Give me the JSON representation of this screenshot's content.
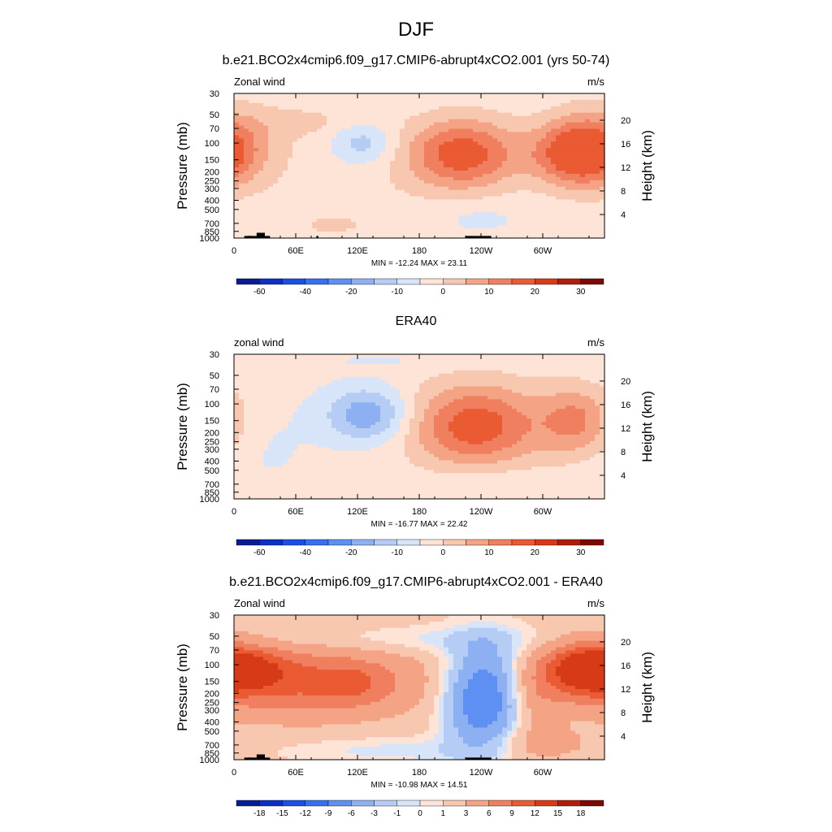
{
  "figure_title": "DJF",
  "chart_data": [
    {
      "type": "contour",
      "title": "b.e21.BCO2x4cmip6.f09_g17.CMIP6-abrupt4xCO2.001 (yrs 50-74)",
      "variable_label": "Zonal wind",
      "units_label": "m/s",
      "ylabel": "Pressure (mb)",
      "y2label": "Height (km)",
      "pressure_ticks": [
        30,
        50,
        70,
        100,
        150,
        200,
        250,
        300,
        400,
        500,
        700,
        850,
        1000
      ],
      "height_ticks": [
        4,
        8,
        12,
        16,
        20
      ],
      "x_ticks": [
        "0",
        "60E",
        "120E",
        "180",
        "120W",
        "60W"
      ],
      "x_tick_lon": [
        0,
        60,
        120,
        180,
        240,
        300
      ],
      "xlim": [
        0,
        360
      ],
      "ylim": [
        1000,
        30
      ],
      "stats": "MIN = -12.24  MAX =  23.11",
      "min": -12.24,
      "max": 23.11,
      "colorbar_labels": [
        "-60",
        "-40",
        "-20",
        "-10",
        "0",
        "10",
        "20",
        "30"
      ],
      "colorbar_label_bin": [
        1,
        3,
        5,
        7,
        9,
        11,
        13,
        15
      ],
      "features": [
        {
          "lon": 355,
          "p": 100,
          "rx": 35,
          "ry": 2.3,
          "amp": 8
        },
        {
          "lon": 105,
          "p": 300,
          "rx": 70,
          "ry": 3.2,
          "amp": 2
        },
        {
          "lon": 125,
          "p": 100,
          "rx": 22,
          "ry": 1.2,
          "amp": -10
        },
        {
          "lon": 222,
          "p": 130,
          "rx": 38,
          "ry": 2.0,
          "amp": 22
        },
        {
          "lon": 335,
          "p": 130,
          "rx": 30,
          "ry": 1.8,
          "amp": 23
        },
        {
          "lon": 75,
          "p": 60,
          "rx": 45,
          "ry": 1.0,
          "amp": 4
        },
        {
          "lon": 235,
          "p": 600,
          "rx": 35,
          "ry": 1.0,
          "amp": -3
        },
        {
          "lon": 95,
          "p": 750,
          "rx": 30,
          "ry": 0.7,
          "amp": 3
        },
        {
          "lon": 5,
          "p": 700,
          "rx": 15,
          "ry": 0.6,
          "amp": -2
        }
      ],
      "terrain": [
        [
          10,
          35,
          950
        ],
        [
          22,
          30,
          880
        ],
        [
          80,
          82,
          950
        ],
        [
          225,
          250,
          950
        ]
      ]
    },
    {
      "type": "contour",
      "title": "ERA40",
      "variable_label": "zonal wind",
      "units_label": "m/s",
      "ylabel": "Pressure (mb)",
      "y2label": "Height (km)",
      "pressure_ticks": [
        30,
        50,
        70,
        100,
        150,
        200,
        250,
        300,
        400,
        500,
        700,
        850,
        1000
      ],
      "height_ticks": [
        4,
        8,
        12,
        16,
        20
      ],
      "x_ticks": [
        "0",
        "60E",
        "120E",
        "180",
        "120W",
        "60W"
      ],
      "x_tick_lon": [
        0,
        60,
        120,
        180,
        240,
        300
      ],
      "xlim": [
        0,
        360
      ],
      "ylim": [
        1000,
        30
      ],
      "stats": "MIN = -16.77  MAX =  22.42",
      "min": -16.77,
      "max": 22.42,
      "colorbar_labels": [
        "-60",
        "-40",
        "-20",
        "-10",
        "0",
        "10",
        "20",
        "30"
      ],
      "colorbar_label_bin": [
        1,
        3,
        5,
        7,
        9,
        11,
        13,
        15
      ],
      "features": [
        {
          "lon": 130,
          "p": 130,
          "rx": 28,
          "ry": 1.5,
          "amp": -16
        },
        {
          "lon": 30,
          "p": 300,
          "rx": 35,
          "ry": 3.0,
          "amp": -2
        },
        {
          "lon": 235,
          "p": 170,
          "rx": 45,
          "ry": 2.4,
          "amp": 22
        },
        {
          "lon": 333,
          "p": 150,
          "rx": 25,
          "ry": 2.0,
          "amp": 14
        },
        {
          "lon": 100,
          "p": 750,
          "rx": 55,
          "ry": 0.8,
          "amp": 2
        },
        {
          "lon": 240,
          "p": 650,
          "rx": 40,
          "ry": 1.0,
          "amp": -3
        },
        {
          "lon": 180,
          "p": 35,
          "rx": 80,
          "ry": 0.5,
          "amp": -2
        }
      ]
    },
    {
      "type": "contour",
      "title": "b.e21.BCO2x4cmip6.f09_g17.CMIP6-abrupt4xCO2.001 - ERA40",
      "variable_label": "Zonal wind",
      "units_label": "m/s",
      "ylabel": "Pressure (mb)",
      "y2label": "Height (km)",
      "pressure_ticks": [
        30,
        50,
        70,
        100,
        150,
        200,
        250,
        300,
        400,
        500,
        700,
        850,
        1000
      ],
      "height_ticks": [
        4,
        8,
        12,
        16,
        20
      ],
      "x_ticks": [
        "0",
        "60E",
        "120E",
        "180",
        "120W",
        "60W"
      ],
      "x_tick_lon": [
        0,
        60,
        120,
        180,
        240,
        300
      ],
      "xlim": [
        0,
        360
      ],
      "ylim": [
        1000,
        30
      ],
      "stats": "MIN = -10.98  MAX =  14.51",
      "min": -10.98,
      "max": 14.51,
      "colorbar_labels": [
        "-18",
        "-15",
        "-12",
        "-9",
        "-6",
        "-3",
        "-1",
        "0",
        "1",
        "3",
        "6",
        "9",
        "12",
        "15",
        "18"
      ],
      "colorbar_label_bin": [
        1,
        2,
        3,
        4,
        5,
        6,
        7,
        8,
        9,
        10,
        11,
        12,
        13,
        14,
        15
      ],
      "features": [
        {
          "lon": 70,
          "p": 150,
          "rx": 75,
          "ry": 2.0,
          "amp": 8
        },
        {
          "lon": 20,
          "p": 110,
          "rx": 25,
          "ry": 1.2,
          "amp": 5
        },
        {
          "lon": 115,
          "p": 160,
          "rx": 22,
          "ry": 1.0,
          "amp": 3
        },
        {
          "lon": 242,
          "p": 230,
          "rx": 25,
          "ry": 3.0,
          "amp": -11
        },
        {
          "lon": 290,
          "p": 230,
          "rx": 18,
          "ry": 2.0,
          "amp": 3
        },
        {
          "lon": 340,
          "p": 110,
          "rx": 28,
          "ry": 1.5,
          "amp": 12
        },
        {
          "lon": 180,
          "p": 55,
          "rx": 120,
          "ry": 0.8,
          "amp": -2
        },
        {
          "lon": 160,
          "p": 800,
          "rx": 80,
          "ry": 0.8,
          "amp": -2
        },
        {
          "lon": 290,
          "p": 700,
          "rx": 40,
          "ry": 1.0,
          "amp": 3
        }
      ],
      "terrain": [
        [
          10,
          35,
          950
        ],
        [
          22,
          30,
          880
        ],
        [
          225,
          250,
          950
        ]
      ]
    }
  ]
}
